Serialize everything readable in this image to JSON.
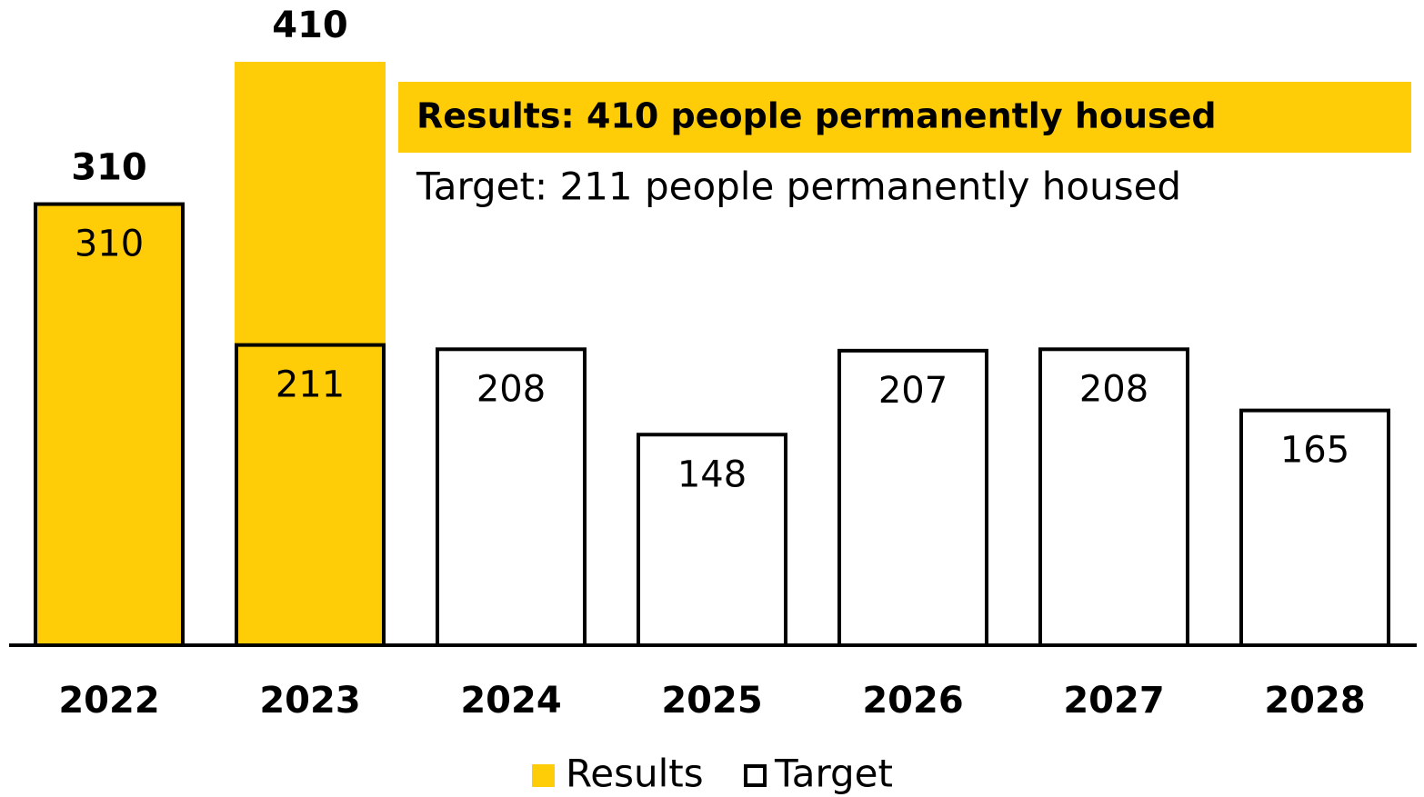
{
  "chart_data": {
    "type": "bar",
    "categories": [
      "2022",
      "2023",
      "2024",
      "2025",
      "2026",
      "2027",
      "2028"
    ],
    "series": [
      {
        "name": "Results",
        "color": "#FFCC08",
        "values": [
          310,
          410,
          null,
          null,
          null,
          null,
          null
        ]
      },
      {
        "name": "Target",
        "color": "#000000",
        "values": [
          310,
          211,
          208,
          148,
          207,
          208,
          165
        ]
      }
    ],
    "annotations": [
      "Results: 410 people permanently housed",
      "Target: 211 people permanently housed"
    ],
    "legend": "bottom"
  }
}
